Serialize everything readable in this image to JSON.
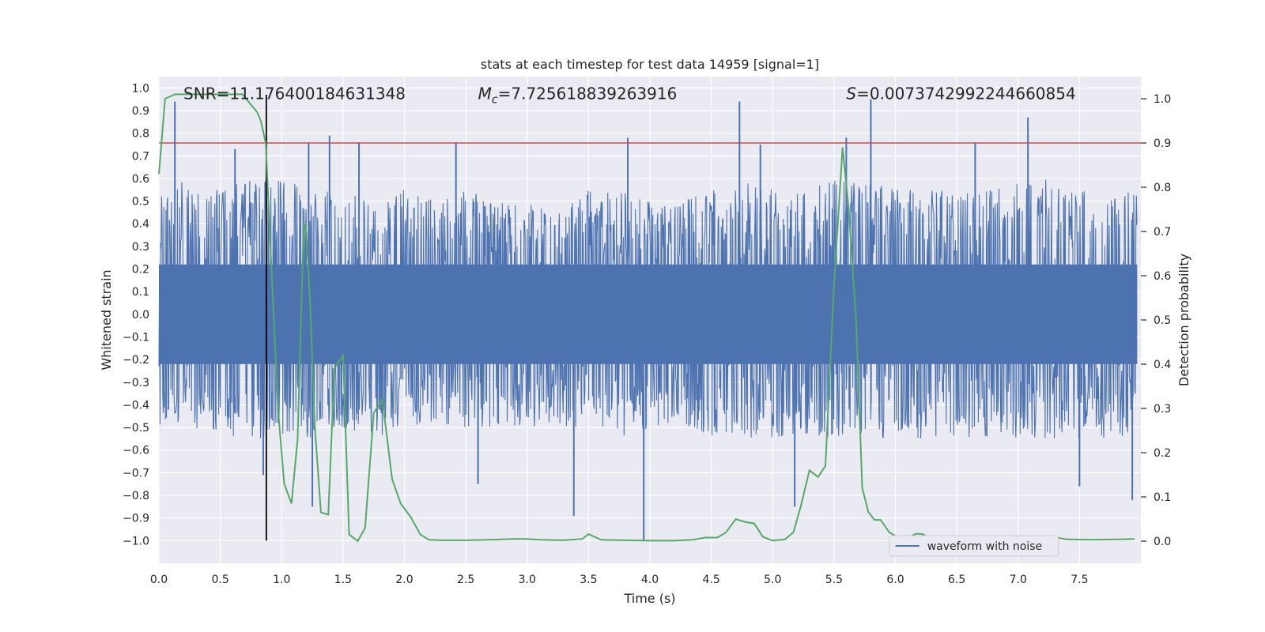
{
  "chart_data": {
    "type": "line",
    "title": "stats at each timestep for test data 14959 [signal=1]",
    "xlabel": "Time (s)",
    "ylabel": "Whitened strain",
    "ylabel_right": "Detection probability",
    "xlim": [
      0.0,
      8.0
    ],
    "ylim": [
      -1.1,
      1.05
    ],
    "ylim_right": [
      -0.05,
      1.05
    ],
    "x_ticks": [
      0.0,
      0.5,
      1.0,
      1.5,
      2.0,
      2.5,
      3.0,
      3.5,
      4.0,
      4.5,
      5.0,
      5.5,
      6.0,
      6.5,
      7.0,
      7.5
    ],
    "x_tick_labels": [
      "0.0",
      "0.5",
      "1.0",
      "1.5",
      "2.0",
      "2.5",
      "3.0",
      "3.5",
      "4.0",
      "4.5",
      "5.0",
      "5.5",
      "6.0",
      "6.5",
      "7.0",
      "7.5"
    ],
    "y_ticks": [
      1.0,
      0.9,
      0.8,
      0.7,
      0.6,
      0.5,
      0.4,
      0.3,
      0.2,
      0.1,
      0.0,
      -0.1,
      -0.2,
      -0.3,
      -0.4,
      -0.5,
      -0.6,
      -0.7,
      -0.8,
      -0.9,
      -1.0
    ],
    "y_tick_labels": [
      "1.0",
      "0.9",
      "0.8",
      "0.7",
      "0.6",
      "0.5",
      "0.4",
      "0.3",
      "0.2",
      "0.1",
      "0.0",
      "−0.1",
      "−0.2",
      "−0.3",
      "−0.4",
      "−0.5",
      "−0.6",
      "−0.7",
      "−0.8",
      "−0.9",
      "−1.0"
    ],
    "y_right_ticks": [
      1.0,
      0.9,
      0.8,
      0.7,
      0.6,
      0.5,
      0.4,
      0.3,
      0.2,
      0.1,
      0.0
    ],
    "y_right_tick_labels": [
      "1.0",
      "0.9",
      "0.8",
      "0.7",
      "0.6",
      "0.5",
      "0.4",
      "0.3",
      "0.2",
      "0.1",
      "0.0"
    ],
    "annotations": {
      "snr": "SNR=11.176400184631348",
      "mc_symbol": "M",
      "mc_sub": "c",
      "mc_value": "=7.725618839263916",
      "s_symbol": "S",
      "s_value": "=0.0073742992244660854"
    },
    "threshold_right": 0.9,
    "vertical_marker_x": 0.875,
    "legend": {
      "label": "waveform with noise",
      "position": "lower-right"
    },
    "series": [
      {
        "name": "waveform with noise",
        "axis": "left",
        "color": "#4c72b0",
        "envelope_x": [
          0.0,
          0.25,
          0.5,
          0.75,
          1.0,
          1.25,
          1.5,
          1.75,
          2.0,
          2.25,
          2.5,
          2.75,
          3.0,
          3.25,
          3.5,
          3.75,
          4.0,
          4.25,
          4.5,
          4.75,
          5.0,
          5.25,
          5.5,
          5.75,
          6.0,
          6.25,
          6.5,
          6.75,
          7.0,
          7.25,
          7.5,
          7.75,
          8.0
        ],
        "envelope_max": [
          0.55,
          0.6,
          0.55,
          0.6,
          0.6,
          0.55,
          0.55,
          0.5,
          0.55,
          0.5,
          0.55,
          0.5,
          0.5,
          0.45,
          0.55,
          0.55,
          0.5,
          0.5,
          0.55,
          0.6,
          0.55,
          0.55,
          0.6,
          0.6,
          0.55,
          0.55,
          0.55,
          0.55,
          0.6,
          0.6,
          0.55,
          0.55,
          0.55
        ],
        "envelope_min": [
          -0.5,
          -0.5,
          -0.55,
          -0.55,
          -0.55,
          -0.55,
          -0.5,
          -0.55,
          -0.5,
          -0.5,
          -0.5,
          -0.5,
          -0.5,
          -0.5,
          -0.5,
          -0.55,
          -0.5,
          -0.5,
          -0.55,
          -0.55,
          -0.55,
          -0.55,
          -0.55,
          -0.55,
          -0.55,
          -0.55,
          -0.55,
          -0.55,
          -0.55,
          -0.55,
          -0.55,
          -0.55,
          -0.55
        ],
        "spikes": [
          {
            "x": 0.13,
            "y": 0.94
          },
          {
            "x": 0.62,
            "y": 0.73
          },
          {
            "x": 0.85,
            "y": -0.71
          },
          {
            "x": 1.22,
            "y": 0.76
          },
          {
            "x": 1.25,
            "y": -0.85
          },
          {
            "x": 1.39,
            "y": 0.79
          },
          {
            "x": 1.63,
            "y": 0.76
          },
          {
            "x": 2.42,
            "y": 0.76
          },
          {
            "x": 2.6,
            "y": -0.75
          },
          {
            "x": 3.38,
            "y": -0.89
          },
          {
            "x": 3.82,
            "y": 0.78
          },
          {
            "x": 3.95,
            "y": -1.0
          },
          {
            "x": 4.73,
            "y": 0.94
          },
          {
            "x": 4.9,
            "y": 0.75
          },
          {
            "x": 5.18,
            "y": -0.85
          },
          {
            "x": 5.6,
            "y": 0.78
          },
          {
            "x": 5.8,
            "y": 0.95
          },
          {
            "x": 6.65,
            "y": 0.76
          },
          {
            "x": 7.08,
            "y": 0.87
          },
          {
            "x": 7.5,
            "y": -0.76
          },
          {
            "x": 7.93,
            "y": -0.82
          }
        ]
      },
      {
        "name": "Detection probability",
        "axis": "right",
        "color": "#55a868",
        "x": [
          0.0,
          0.05,
          0.13,
          0.3,
          0.5,
          0.68,
          0.8,
          0.83,
          0.87,
          0.92,
          0.97,
          1.02,
          1.08,
          1.13,
          1.18,
          1.2,
          1.23,
          1.27,
          1.32,
          1.38,
          1.43,
          1.5,
          1.55,
          1.62,
          1.68,
          1.75,
          1.82,
          1.9,
          1.97,
          2.05,
          2.13,
          2.2,
          2.3,
          2.5,
          2.7,
          2.9,
          3.0,
          3.1,
          3.3,
          3.45,
          3.5,
          3.6,
          3.8,
          4.0,
          4.2,
          4.35,
          4.45,
          4.55,
          4.62,
          4.7,
          4.78,
          4.85,
          4.92,
          5.0,
          5.1,
          5.17,
          5.23,
          5.3,
          5.37,
          5.43,
          5.5,
          5.57,
          5.62,
          5.68,
          5.73,
          5.78,
          5.83,
          5.88,
          5.95,
          6.03,
          6.1,
          6.17,
          6.22,
          6.28,
          6.35,
          6.5,
          6.7,
          7.0,
          7.2,
          7.3,
          7.4,
          7.6,
          7.8,
          7.95
        ],
        "y": [
          0.83,
          1.0,
          1.01,
          1.01,
          1.01,
          1.01,
          0.97,
          0.95,
          0.9,
          0.6,
          0.3,
          0.13,
          0.085,
          0.23,
          0.72,
          0.7,
          0.55,
          0.26,
          0.065,
          0.06,
          0.39,
          0.42,
          0.015,
          0.0,
          0.03,
          0.29,
          0.32,
          0.14,
          0.085,
          0.055,
          0.015,
          0.003,
          0.002,
          0.002,
          0.003,
          0.005,
          0.005,
          0.003,
          0.002,
          0.005,
          0.016,
          0.003,
          0.002,
          0.001,
          0.001,
          0.003,
          0.008,
          0.008,
          0.02,
          0.05,
          0.043,
          0.04,
          0.01,
          0.001,
          0.004,
          0.02,
          0.08,
          0.16,
          0.145,
          0.17,
          0.58,
          0.89,
          0.75,
          0.5,
          0.12,
          0.066,
          0.048,
          0.048,
          0.02,
          0.007,
          0.008,
          0.017,
          0.016,
          0.007,
          0.006,
          0.004,
          0.003,
          0.001,
          0.003,
          0.009,
          0.004,
          0.003,
          0.004,
          0.005
        ]
      }
    ],
    "colors": {
      "background": "#eaeaf2",
      "grid": "#ffffff",
      "threshold": "#c44e52",
      "marker": "#000000"
    }
  }
}
